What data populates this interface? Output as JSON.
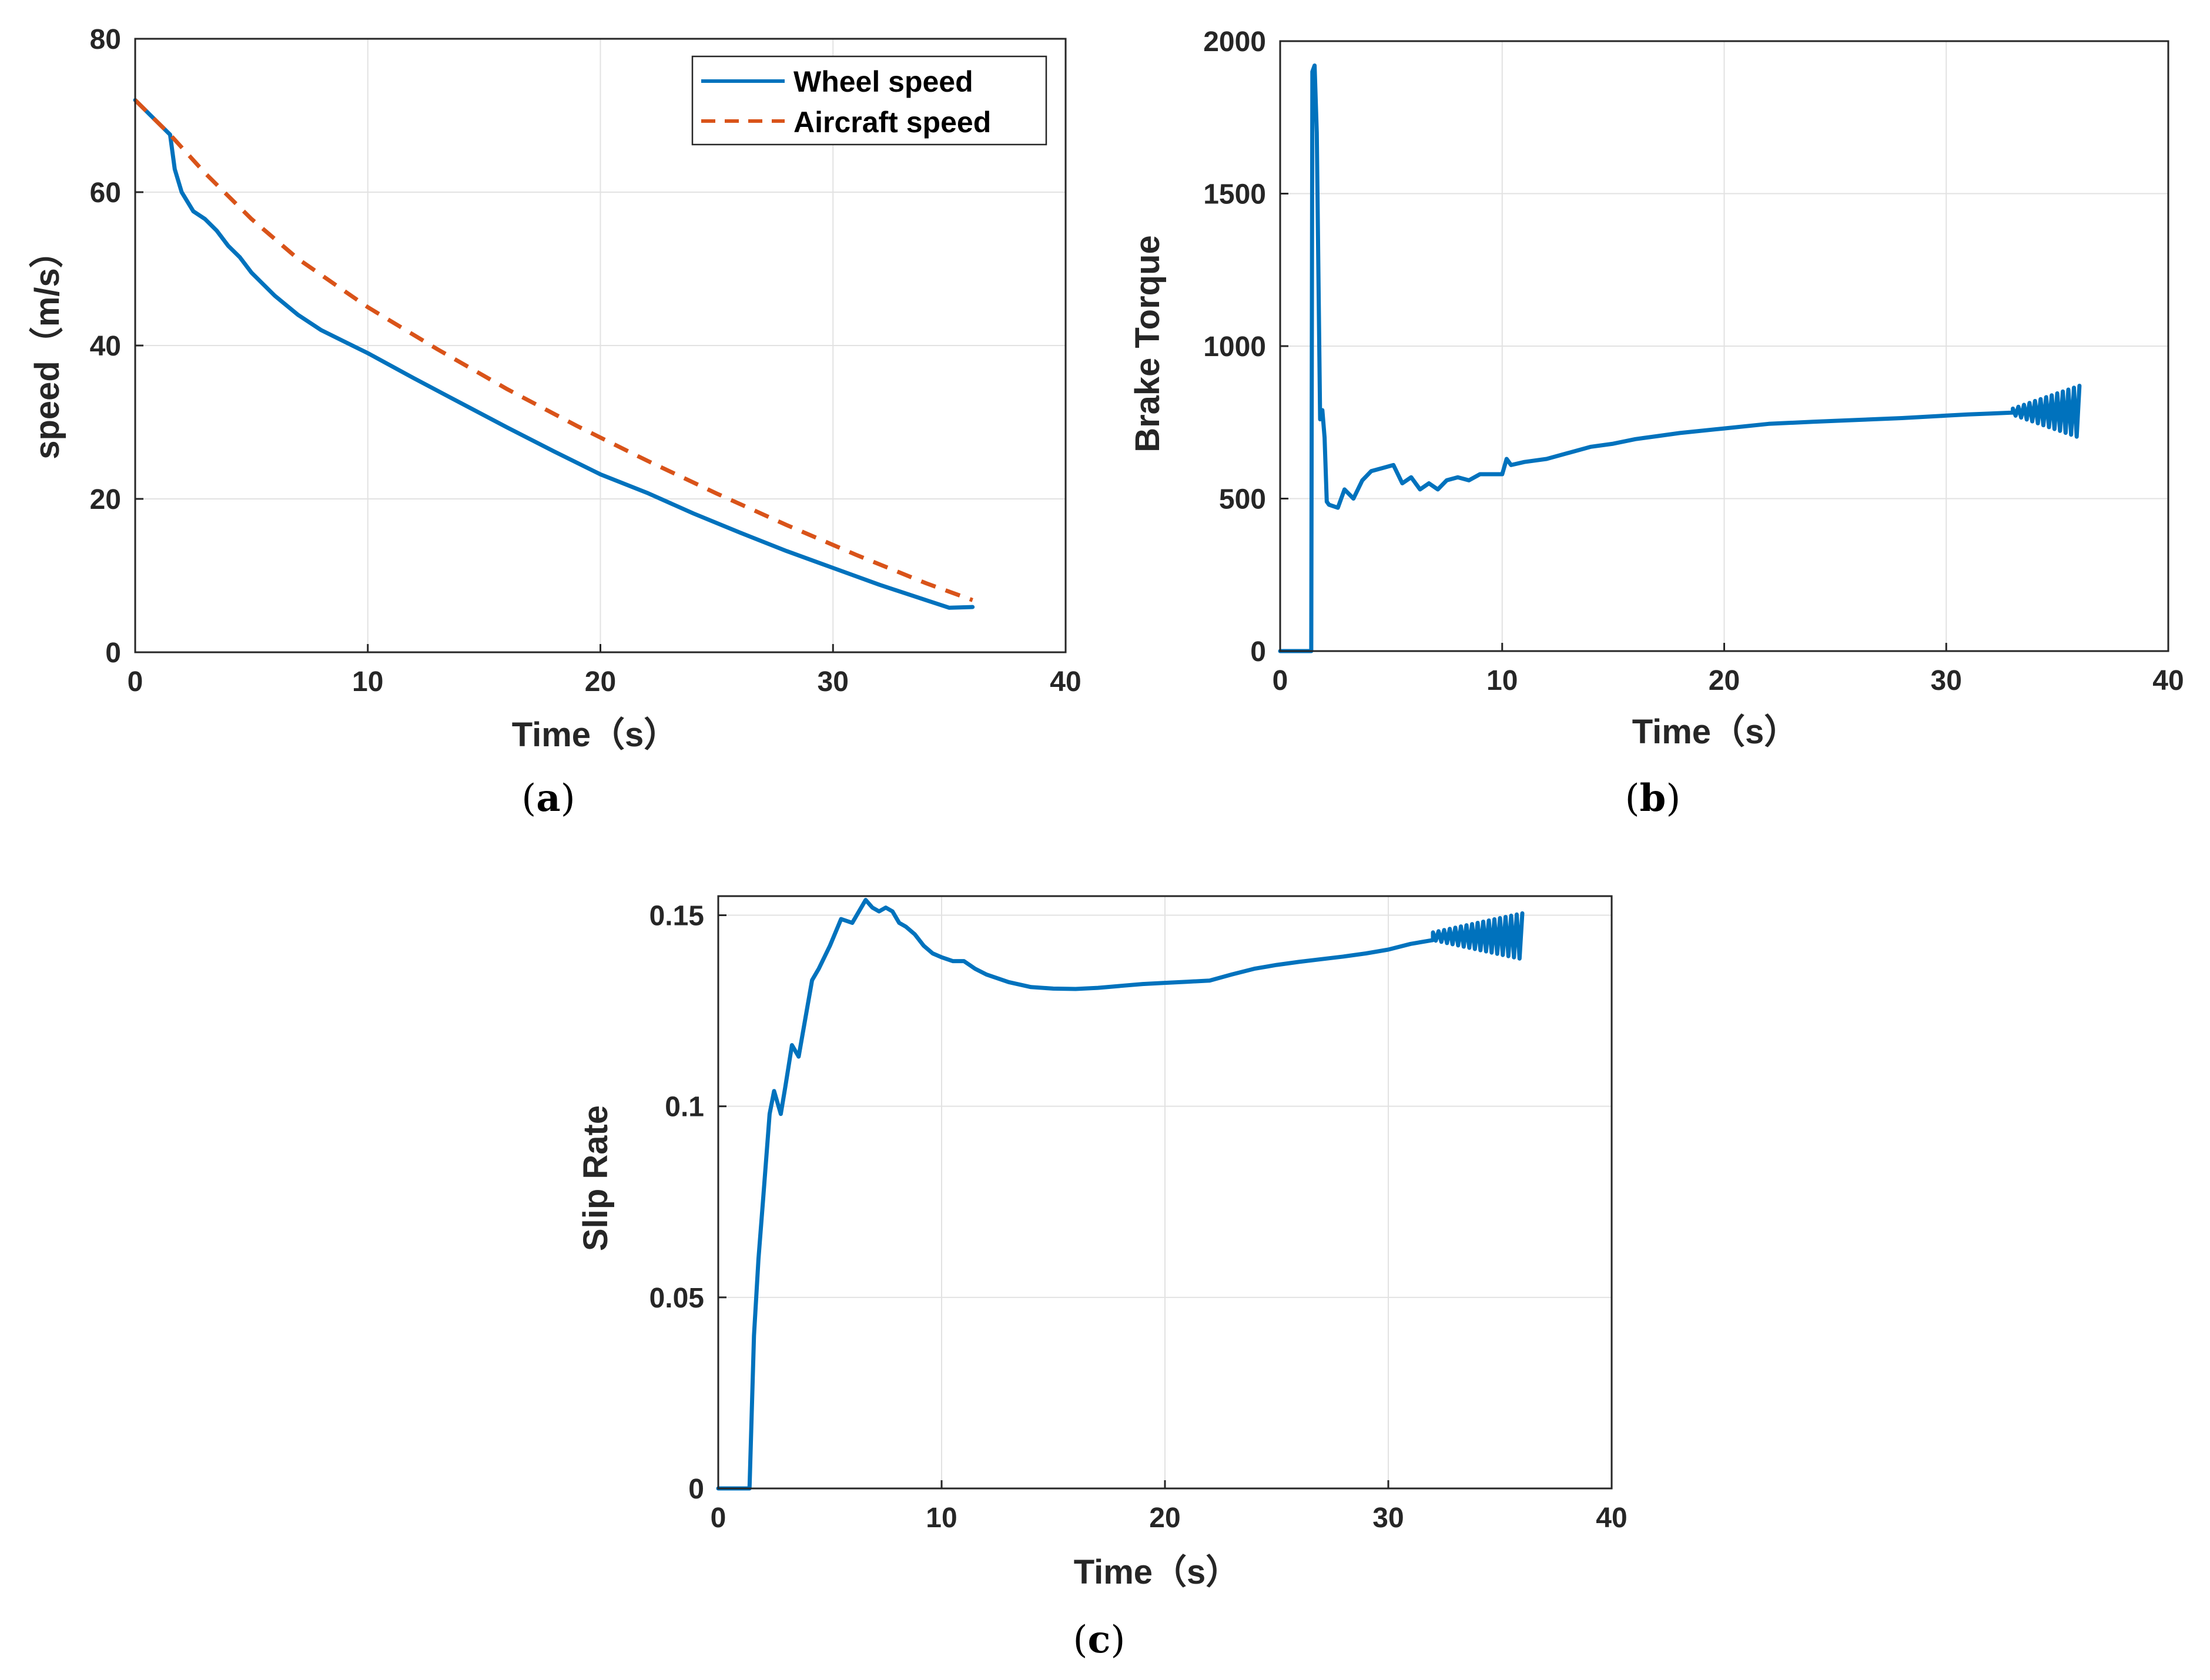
{
  "colors": {
    "wheel": "#0072BD",
    "aircraft": "#D95319",
    "axis": "#262626",
    "grid": "#e2e2e2"
  },
  "chart_data": [
    {
      "type": "line",
      "caption": "a",
      "xlabel": "Time（s）",
      "ylabel": "speed（m/s）",
      "xlim": [
        0,
        40
      ],
      "ylim": [
        0,
        80
      ],
      "xticks": [
        0,
        10,
        20,
        30,
        40
      ],
      "yticks": [
        0,
        20,
        40,
        60,
        80
      ],
      "grid": true,
      "legend": {
        "position": "top-right",
        "entries": [
          "Wheel speed",
          "Aircraft speed"
        ]
      },
      "series": [
        {
          "name": "Wheel speed",
          "style": "solid",
          "color": "#0072BD",
          "x": [
            0,
            1.5,
            1.7,
            2,
            2.5,
            3,
            3.5,
            4,
            4.5,
            5,
            6,
            7,
            8,
            9,
            10,
            12,
            14,
            16,
            18,
            20,
            22,
            24,
            26,
            28,
            30,
            32,
            34,
            35,
            36
          ],
          "y": [
            72,
            67.5,
            63,
            60,
            57.5,
            56.5,
            55,
            53,
            51.5,
            49.5,
            46.5,
            44,
            42,
            40.5,
            39,
            35.7,
            32.5,
            29.3,
            26.2,
            23.2,
            20.8,
            18.1,
            15.6,
            13.2,
            11,
            8.8,
            6.8,
            5.8,
            5.9
          ]
        },
        {
          "name": "Aircraft speed",
          "style": "dashed",
          "color": "#D95319",
          "x": [
            0,
            1.5,
            3,
            5,
            7,
            10,
            13,
            16,
            19,
            22,
            25,
            28,
            31,
            34,
            36
          ],
          "y": [
            72,
            67.5,
            62.5,
            56.5,
            51.3,
            45,
            39.5,
            34.3,
            29.5,
            25,
            20.7,
            16.6,
            12.7,
            9,
            6.8
          ]
        }
      ]
    },
    {
      "type": "line",
      "caption": "b",
      "xlabel": "Time（s）",
      "ylabel": "Brake Torque",
      "xlim": [
        0,
        40
      ],
      "ylim": [
        0,
        2000
      ],
      "xticks": [
        0,
        10,
        20,
        30,
        40
      ],
      "yticks": [
        0,
        500,
        1000,
        1500,
        2000
      ],
      "grid": true,
      "series": [
        {
          "name": "Brake Torque",
          "style": "solid",
          "color": "#0072BD",
          "x": [
            0,
            1.4,
            1.45,
            1.55,
            1.65,
            1.8,
            1.9,
            2.0,
            2.1,
            2.2,
            2.6,
            2.9,
            3.3,
            3.7,
            4.1,
            4.6,
            5.1,
            5.5,
            5.9,
            6.3,
            6.7,
            7.1,
            7.5,
            8.0,
            8.5,
            9.0,
            9.5,
            10.0,
            10.2,
            10.4,
            11,
            12,
            13,
            14,
            15,
            16,
            17,
            18,
            20,
            22,
            24,
            26,
            28,
            30,
            31,
            32,
            33
          ],
          "y": [
            0,
            0,
            1900,
            1920,
            1700,
            760,
            790,
            700,
            490,
            480,
            470,
            530,
            500,
            560,
            590,
            600,
            610,
            550,
            570,
            530,
            550,
            530,
            560,
            570,
            560,
            580,
            580,
            580,
            630,
            610,
            620,
            630,
            650,
            670,
            680,
            695,
            705,
            715,
            730,
            745,
            752,
            758,
            764,
            772,
            776,
            779,
            782
          ]
        }
      ],
      "oscillation": {
        "x_start": 33,
        "x_end": 36,
        "center": 785,
        "amplitude_start": 10,
        "amplitude_end": 85,
        "period": 0.25
      }
    },
    {
      "type": "line",
      "caption": "c",
      "xlabel": "Time（s）",
      "ylabel": "Slip Rate",
      "xlim": [
        0,
        40
      ],
      "ylim": [
        0,
        0.155
      ],
      "xticks": [
        0,
        10,
        20,
        30,
        40
      ],
      "yticks": [
        0,
        0.05,
        0.1,
        0.15
      ],
      "yticklabels": [
        "0",
        "0.05",
        "0.1",
        "0.15"
      ],
      "grid": true,
      "series": [
        {
          "name": "Slip Rate",
          "style": "solid",
          "color": "#0072BD",
          "x": [
            0,
            1.4,
            1.5,
            1.6,
            1.8,
            2.0,
            2.3,
            2.5,
            2.8,
            3.0,
            3.3,
            3.6,
            3.9,
            4.2,
            4.5,
            5.0,
            5.5,
            6.0,
            6.3,
            6.6,
            6.9,
            7.2,
            7.5,
            7.8,
            8.1,
            8.4,
            8.8,
            9.2,
            9.6,
            10.0,
            10.5,
            11,
            11.5,
            12,
            13,
            14,
            15,
            16,
            17,
            18,
            19,
            20,
            21,
            22,
            23,
            24,
            25,
            26,
            27,
            28,
            29,
            30,
            31,
            32
          ],
          "y": [
            0,
            0,
            0.02,
            0.04,
            0.06,
            0.075,
            0.098,
            0.104,
            0.098,
            0.105,
            0.116,
            0.113,
            0.123,
            0.133,
            0.136,
            0.142,
            0.149,
            0.148,
            0.151,
            0.154,
            0.152,
            0.151,
            0.152,
            0.151,
            0.148,
            0.147,
            0.145,
            0.142,
            0.14,
            0.139,
            0.138,
            0.138,
            0.136,
            0.1345,
            0.1325,
            0.1312,
            0.1308,
            0.1307,
            0.131,
            0.1315,
            0.132,
            0.1323,
            0.1326,
            0.1329,
            0.1345,
            0.136,
            0.137,
            0.1378,
            0.1385,
            0.1392,
            0.14,
            0.141,
            0.1425,
            0.1435
          ]
        }
      ],
      "oscillation": {
        "x_start": 32,
        "x_end": 36,
        "center": 0.1445,
        "amplitude_start": 0.001,
        "amplitude_end": 0.006,
        "period": 0.25
      }
    }
  ]
}
